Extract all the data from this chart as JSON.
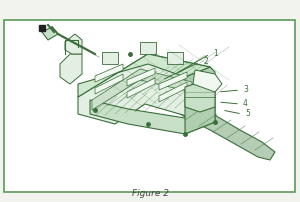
{
  "fig_bg": "#f2f2ee",
  "inner_bg": "#ffffff",
  "border_color": "#5a9a5a",
  "border_lw": 1.2,
  "dc": "#3a6e3a",
  "lc": "#4a8a4a",
  "fill_light": "#e2efe2",
  "fill_mid": "#c8e0c8",
  "fill_dark": "#b0ceb0",
  "fill_white": "#f0f8f0",
  "caption": "Figure 2",
  "caption_fontsize": 6.5,
  "caption_color": "#444444"
}
